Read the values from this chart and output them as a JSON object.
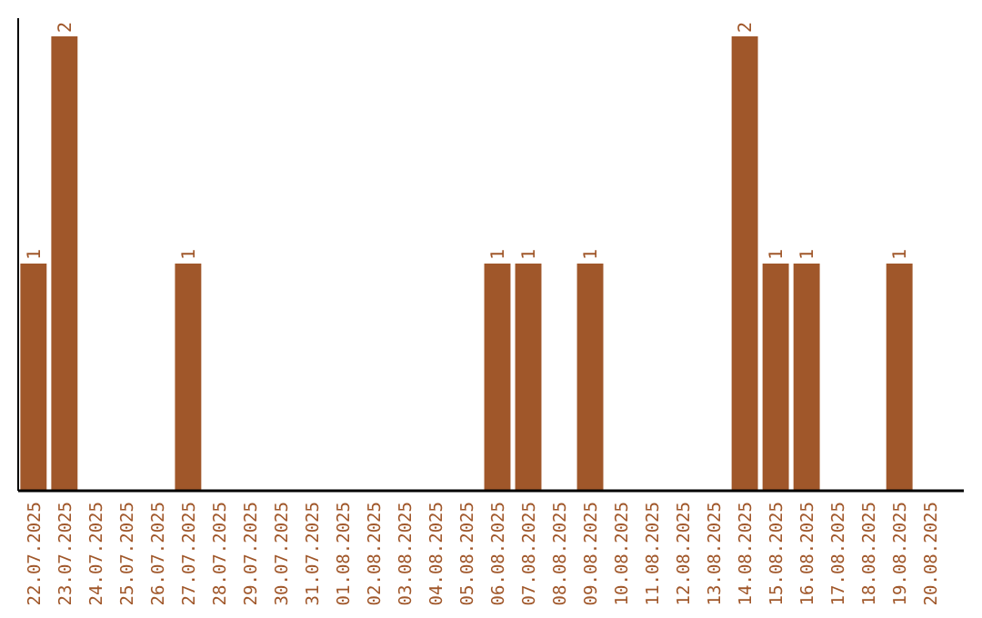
{
  "chart_data": {
    "type": "bar",
    "categories": [
      "22.07.2025",
      "23.07.2025",
      "24.07.2025",
      "25.07.2025",
      "26.07.2025",
      "27.07.2025",
      "28.07.2025",
      "29.07.2025",
      "30.07.2025",
      "31.07.2025",
      "01.08.2025",
      "02.08.2025",
      "03.08.2025",
      "04.08.2025",
      "05.08.2025",
      "06.08.2025",
      "07.08.2025",
      "08.08.2025",
      "09.08.2025",
      "10.08.2025",
      "11.08.2025",
      "12.08.2025",
      "13.08.2025",
      "14.08.2025",
      "15.08.2025",
      "16.08.2025",
      "17.08.2025",
      "18.08.2025",
      "19.08.2025",
      "20.08.2025"
    ],
    "values": [
      1,
      2,
      0,
      0,
      0,
      1,
      0,
      0,
      0,
      0,
      0,
      0,
      0,
      0,
      0,
      1,
      1,
      0,
      1,
      0,
      0,
      0,
      0,
      2,
      1,
      1,
      0,
      0,
      1,
      0
    ],
    "value_labels": [
      "1",
      "2",
      null,
      null,
      null,
      "1",
      null,
      null,
      null,
      null,
      null,
      null,
      null,
      null,
      null,
      "1",
      "1",
      null,
      "1",
      null,
      null,
      null,
      null,
      "2",
      "1",
      "1",
      null,
      null,
      "1",
      null
    ],
    "color": "#a0572a",
    "ylim": [
      0,
      2.08
    ],
    "tick_labels": "x"
  }
}
